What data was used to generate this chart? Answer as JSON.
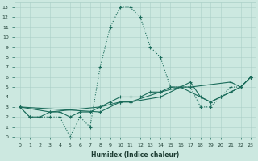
{
  "xlabel": "Humidex (Indice chaleur)",
  "xlim": [
    -0.5,
    23.5
  ],
  "ylim": [
    0,
    13.5
  ],
  "xticks": [
    0,
    1,
    2,
    3,
    4,
    5,
    6,
    7,
    8,
    9,
    10,
    11,
    12,
    13,
    14,
    15,
    16,
    17,
    18,
    19,
    20,
    21,
    22,
    23
  ],
  "yticks": [
    0,
    1,
    2,
    3,
    4,
    5,
    6,
    7,
    8,
    9,
    10,
    11,
    12,
    13
  ],
  "bg_color": "#cce8e0",
  "line_color": "#1a6b5a",
  "grid_color": "#aacfc7",
  "line1_x": [
    0,
    1,
    2,
    3,
    4,
    5,
    6,
    7,
    8,
    9,
    10,
    11,
    12,
    13,
    14,
    15,
    16,
    17,
    18,
    19,
    20,
    21,
    22,
    23
  ],
  "line1_y": [
    3,
    2,
    2,
    2,
    2,
    0,
    2,
    1,
    7,
    11,
    13,
    13,
    12,
    9,
    8,
    5,
    5,
    5,
    3,
    3,
    4,
    5,
    5,
    6
  ],
  "line2_x": [
    0,
    1,
    2,
    3,
    4,
    5,
    6,
    7,
    8,
    9,
    10,
    11,
    12,
    13,
    14,
    15,
    16,
    17,
    18,
    19,
    20,
    21,
    22,
    23
  ],
  "line2_y": [
    3,
    2,
    2,
    2.5,
    2.5,
    2,
    2.5,
    2.5,
    3,
    3.5,
    4,
    4,
    4,
    4.5,
    4.5,
    5,
    5,
    5.5,
    4,
    3.5,
    4,
    4.5,
    5,
    6
  ],
  "line3_x": [
    0,
    3,
    8,
    10,
    11,
    14,
    16,
    17,
    21,
    22,
    23
  ],
  "line3_y": [
    3,
    2.5,
    3,
    3.5,
    3.5,
    4,
    5,
    5,
    5.5,
    5,
    6
  ],
  "line4_x": [
    0,
    8,
    10,
    11,
    14,
    16,
    19,
    20,
    21,
    22,
    23
  ],
  "line4_y": [
    3,
    2.5,
    3.5,
    3.5,
    4.5,
    5,
    3.5,
    4,
    4.5,
    5,
    6
  ],
  "marker": "+",
  "markersize": 3,
  "linewidth": 0.8
}
